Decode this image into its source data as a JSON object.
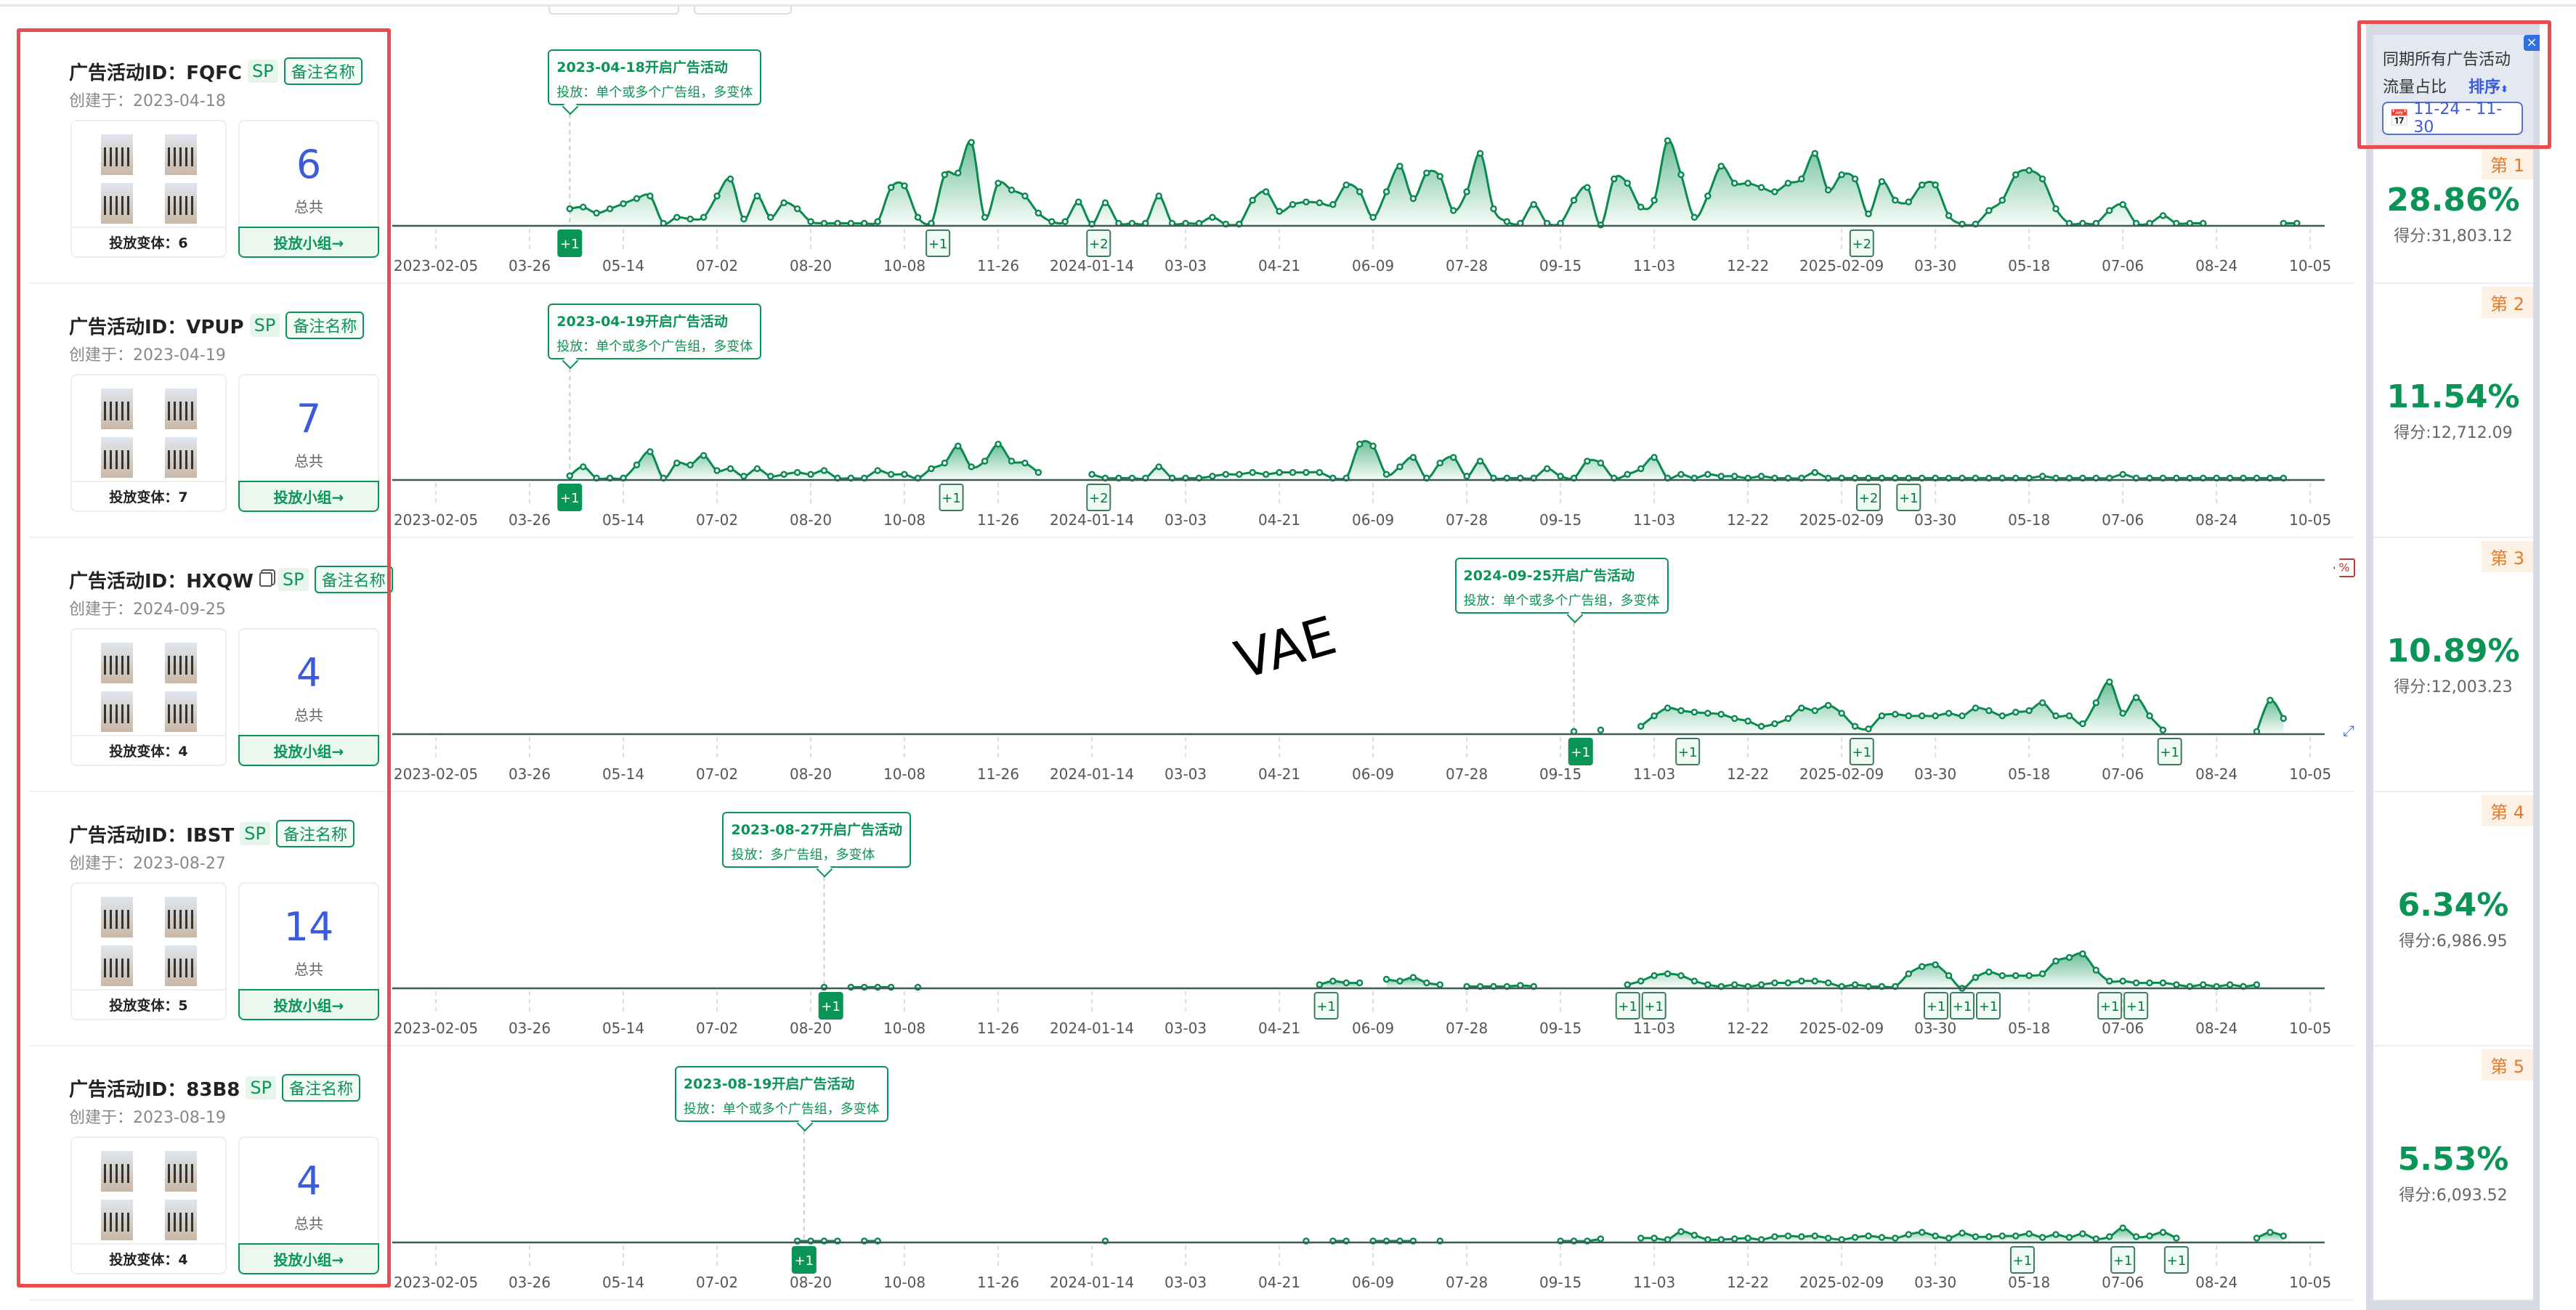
{
  "header_panel": {
    "line1": "同期所有广告活动",
    "line2": "流量占比",
    "sort_label": "排序",
    "date_range": "11-24 - 11-30",
    "close_label": "×"
  },
  "annotation": "VAE",
  "campaigns": [
    {
      "id_label": "广告活动ID：FQFC",
      "sp": "SP",
      "note": "备注名称",
      "created": "创建于：2023-04-18",
      "total": "6",
      "total_label": "总共",
      "variants": "投放变体：6",
      "group_btn": "投放小组→",
      "rank": "第 1",
      "pct": "28.86%",
      "score": "得分:31,803.12",
      "tip_title": "2023-04-18开启广告活动",
      "tip_desc": "投放：单个或多个广告组，多变体"
    },
    {
      "id_label": "广告活动ID：VPUP",
      "sp": "SP",
      "note": "备注名称",
      "created": "创建于：2023-04-19",
      "total": "7",
      "total_label": "总共",
      "variants": "投放变体：7",
      "group_btn": "投放小组→",
      "rank": "第 2",
      "pct": "11.54%",
      "score": "得分:12,712.09",
      "tip_title": "2023-04-19开启广告活动",
      "tip_desc": "投放：单个或多个广告组，多变体"
    },
    {
      "id_label": "广告活动ID：HXQW",
      "sp": "SP",
      "note": "备注名称",
      "created": "创建于：2024-09-25",
      "total": "4",
      "total_label": "总共",
      "variants": "投放变体：4",
      "group_btn": "投放小组→",
      "rank": "第 3",
      "pct": "10.89%",
      "score": "得分:12,003.23",
      "tip_title": "2024-09-25开启广告活动",
      "tip_desc": "投放：单个或多个广告组，多变体",
      "pct_tag": "%"
    },
    {
      "id_label": "广告活动ID：IBST",
      "sp": "SP",
      "note": "备注名称",
      "created": "创建于：2023-08-27",
      "total": "14",
      "total_label": "总共",
      "variants": "投放变体：5",
      "group_btn": "投放小组→",
      "rank": "第 4",
      "pct": "6.34%",
      "score": "得分:6,986.95",
      "tip_title": "2023-08-27开启广告活动",
      "tip_desc": "投放：多广告组，多变体"
    },
    {
      "id_label": "广告活动ID：83B8",
      "sp": "SP",
      "note": "备注名称",
      "created": "创建于：2023-08-19",
      "total": "4",
      "total_label": "总共",
      "variants": "投放变体：4",
      "group_btn": "投放小组→",
      "rank": "第 5",
      "pct": "5.53%",
      "score": "得分:6,093.52",
      "tip_title": "2023-08-19开启广告活动",
      "tip_desc": "投放：单个或多个广告组，多变体"
    }
  ],
  "chart_data": [
    {
      "type": "area",
      "x_start": "2023-02-05",
      "step_days": 7,
      "x_ticks": [
        "2023-02-05",
        "03-26",
        "05-14",
        "07-02",
        "08-20",
        "10-08",
        "11-26",
        "2024-01-14",
        "03-03",
        "04-21",
        "06-09",
        "07-28",
        "09-15",
        "11-03",
        "12-22",
        "2025-02-09",
        "03-30",
        "05-18",
        "07-06",
        "08-24",
        "10-05"
      ],
      "tick_step_weeks": 7,
      "ymax": 230,
      "start_week": 10,
      "tip_week": 10,
      "values": [
        20,
        22,
        15,
        20,
        26,
        32,
        35,
        3,
        10,
        8,
        10,
        35,
        55,
        8,
        35,
        10,
        27,
        20,
        5,
        3,
        3,
        3,
        3,
        5,
        45,
        47,
        10,
        3,
        60,
        62,
        98,
        10,
        50,
        42,
        35,
        15,
        5,
        5,
        28,
        2,
        27,
        3,
        3,
        3,
        35,
        3,
        3,
        3,
        10,
        2,
        2,
        30,
        40,
        17,
        25,
        28,
        27,
        25,
        48,
        40,
        10,
        40,
        70,
        32,
        62,
        58,
        18,
        40,
        85,
        20,
        5,
        3,
        25,
        3,
        3,
        30,
        45,
        1,
        55,
        50,
        22,
        30,
        100,
        60,
        10,
        35,
        70,
        50,
        50,
        45,
        40,
        50,
        55,
        85,
        42,
        60,
        55,
        14,
        52,
        30,
        28,
        48,
        48,
        12,
        2,
        2,
        18,
        30,
        60,
        65,
        55,
        20,
        3,
        3,
        3,
        18,
        25,
        3,
        3,
        12,
        3,
        3,
        3,
        null,
        null,
        null,
        null,
        null,
        3,
        3
      ],
      "markers": [
        {
          "week": 10,
          "label": "+1",
          "solid": true
        },
        {
          "week": 37.5,
          "label": "+1"
        },
        {
          "week": 49.5,
          "label": "+2"
        },
        {
          "week": 106.5,
          "label": "+2"
        }
      ]
    },
    {
      "type": "area",
      "x_start": "2023-02-05",
      "step_days": 7,
      "x_ticks": [
        "2023-02-05",
        "03-26",
        "05-14",
        "07-02",
        "08-20",
        "10-08",
        "11-26",
        "2024-01-14",
        "03-03",
        "04-21",
        "06-09",
        "07-28",
        "09-15",
        "11-03",
        "12-22",
        "2025-02-09",
        "03-30",
        "05-18",
        "07-06",
        "08-24",
        "10-05"
      ],
      "tick_step_weeks": 7,
      "ymax": 520,
      "start_week": 10,
      "tip_week": 10,
      "values": [
        11,
        35,
        5,
        5,
        5,
        40,
        75,
        5,
        45,
        40,
        65,
        25,
        30,
        10,
        30,
        10,
        15,
        20,
        15,
        25,
        5,
        5,
        5,
        25,
        15,
        15,
        5,
        30,
        45,
        90,
        35,
        50,
        95,
        50,
        45,
        20,
        null,
        null,
        null,
        15,
        5,
        5,
        5,
        5,
        35,
        5,
        5,
        5,
        10,
        15,
        15,
        20,
        15,
        20,
        20,
        20,
        20,
        5,
        5,
        95,
        90,
        15,
        35,
        60,
        5,
        45,
        60,
        10,
        50,
        5,
        5,
        5,
        5,
        30,
        10,
        5,
        50,
        45,
        5,
        15,
        30,
        60,
        5,
        15,
        5,
        15,
        10,
        10,
        5,
        10,
        5,
        5,
        5,
        20,
        5,
        5,
        5,
        5,
        5,
        5,
        5,
        5,
        5,
        5,
        5,
        5,
        5,
        5,
        5,
        5,
        10,
        5,
        5,
        5,
        5,
        5,
        15,
        5,
        5,
        5,
        5,
        5,
        5,
        5,
        5,
        5,
        5,
        5,
        5
      ],
      "markers": [
        {
          "week": 10,
          "label": "+1",
          "solid": true
        },
        {
          "week": 38.5,
          "label": "+1"
        },
        {
          "week": 49.5,
          "label": "+2"
        },
        {
          "week": 107,
          "label": "+2"
        },
        {
          "week": 110,
          "label": "+1"
        }
      ]
    },
    {
      "type": "area",
      "x_start": "2023-02-05",
      "step_days": 7,
      "x_ticks": [
        "2023-02-05",
        "03-26",
        "05-14",
        "07-02",
        "08-20",
        "10-08",
        "11-26",
        "2024-01-14",
        "03-03",
        "04-21",
        "06-09",
        "07-28",
        "09-15",
        "11-03",
        "12-22",
        "2025-02-09",
        "03-30",
        "05-18",
        "07-06",
        "08-24",
        "10-05"
      ],
      "tick_step_weeks": 7,
      "ymax": 375,
      "start_week": 85,
      "tip_week": 85,
      "values": [
        5,
        null,
        8,
        null,
        null,
        15,
        35,
        50,
        45,
        42,
        40,
        38,
        30,
        25,
        15,
        20,
        30,
        50,
        45,
        55,
        40,
        15,
        10,
        35,
        38,
        35,
        35,
        35,
        40,
        35,
        50,
        45,
        35,
        42,
        45,
        60,
        35,
        35,
        20,
        60,
        100,
        40,
        70,
        35,
        8,
        null,
        null,
        null,
        null,
        null,
        null,
        5,
        65,
        30
      ],
      "markers": [
        {
          "week": 85.5,
          "label": "+1",
          "solid": true
        },
        {
          "week": 93.5,
          "label": "+1"
        },
        {
          "week": 106.5,
          "label": "+1"
        },
        {
          "week": 129.5,
          "label": "+1"
        }
      ]
    },
    {
      "type": "area",
      "x_start": "2023-02-05",
      "step_days": 7,
      "x_ticks": [
        "2023-02-05",
        "03-26",
        "05-14",
        "07-02",
        "08-20",
        "10-08",
        "11-26",
        "2024-01-14",
        "03-03",
        "04-21",
        "06-09",
        "07-28",
        "09-15",
        "11-03",
        "12-22",
        "2025-02-09",
        "03-30",
        "05-18",
        "07-06",
        "08-24",
        "10-05"
      ],
      "tick_step_weeks": 7,
      "ymax": 540,
      "start_week": 29,
      "tip_week": 29,
      "values": [
        3,
        null,
        3,
        3,
        3,
        3,
        null,
        3,
        null,
        null,
        null,
        null,
        null,
        null,
        null,
        null,
        null,
        null,
        null,
        null,
        null,
        null,
        null,
        null,
        null,
        null,
        null,
        null,
        null,
        null,
        null,
        null,
        null,
        null,
        null,
        null,
        null,
        10,
        20,
        15,
        15,
        null,
        25,
        20,
        30,
        15,
        10,
        null,
        5,
        5,
        5,
        5,
        8,
        5,
        null,
        null,
        null,
        null,
        null,
        null,
        10,
        20,
        35,
        40,
        35,
        20,
        10,
        5,
        10,
        5,
        10,
        15,
        15,
        20,
        20,
        15,
        5,
        10,
        5,
        5,
        5,
        40,
        60,
        65,
        35,
        0,
        30,
        45,
        35,
        35,
        35,
        40,
        75,
        85,
        95,
        50,
        20,
        20,
        15,
        15,
        15,
        10,
        5,
        10,
        5,
        10,
        5,
        10
      ],
      "markers": [
        {
          "week": 29.5,
          "label": "+1",
          "solid": true
        },
        {
          "week": 66.5,
          "label": "+1"
        },
        {
          "week": 89.5,
          "label": "+1"
        },
        {
          "week": 90.5,
          "label": "+1"
        },
        {
          "week": 113,
          "label": "+1"
        },
        {
          "week": 114,
          "label": "+1"
        },
        {
          "week": 115,
          "label": "+1"
        },
        {
          "week": 125.5,
          "label": "+1"
        },
        {
          "week": 126.5,
          "label": "+1"
        }
      ]
    },
    {
      "type": "area",
      "x_start": "2023-02-05",
      "step_days": 7,
      "x_ticks": [
        "2023-02-05",
        "03-26",
        "05-14",
        "07-02",
        "08-20",
        "10-08",
        "11-26",
        "2024-01-14",
        "03-03",
        "04-21",
        "06-09",
        "07-28",
        "09-15",
        "11-03",
        "12-22",
        "2025-02-09",
        "03-30",
        "05-18",
        "07-06",
        "08-24",
        "10-05"
      ],
      "tick_step_weeks": 7,
      "ymax": 1350,
      "start_week": 27,
      "tip_week": 27.5,
      "values": [
        10,
        10,
        10,
        10,
        null,
        10,
        10,
        null,
        null,
        null,
        null,
        null,
        null,
        null,
        null,
        null,
        null,
        null,
        null,
        null,
        null,
        null,
        null,
        10,
        null,
        null,
        null,
        null,
        null,
        null,
        null,
        null,
        null,
        null,
        null,
        null,
        null,
        null,
        10,
        null,
        10,
        10,
        null,
        10,
        10,
        10,
        10,
        null,
        10,
        null,
        null,
        null,
        null,
        null,
        null,
        null,
        null,
        10,
        10,
        10,
        25,
        null,
        null,
        30,
        30,
        20,
        75,
        50,
        20,
        20,
        25,
        30,
        20,
        40,
        45,
        40,
        45,
        30,
        20,
        35,
        45,
        35,
        30,
        55,
        70,
        45,
        30,
        65,
        40,
        40,
        45,
        45,
        60,
        35,
        55,
        35,
        60,
        25,
        40,
        100,
        40,
        45,
        70,
        30,
        null,
        null,
        null,
        null,
        null,
        30,
        70,
        45
      ],
      "markers": [
        {
          "week": 27.5,
          "label": "+1",
          "solid": true
        },
        {
          "week": 118.5,
          "label": "+1"
        },
        {
          "week": 126,
          "label": "+1"
        },
        {
          "week": 130,
          "label": "+1"
        }
      ]
    }
  ]
}
